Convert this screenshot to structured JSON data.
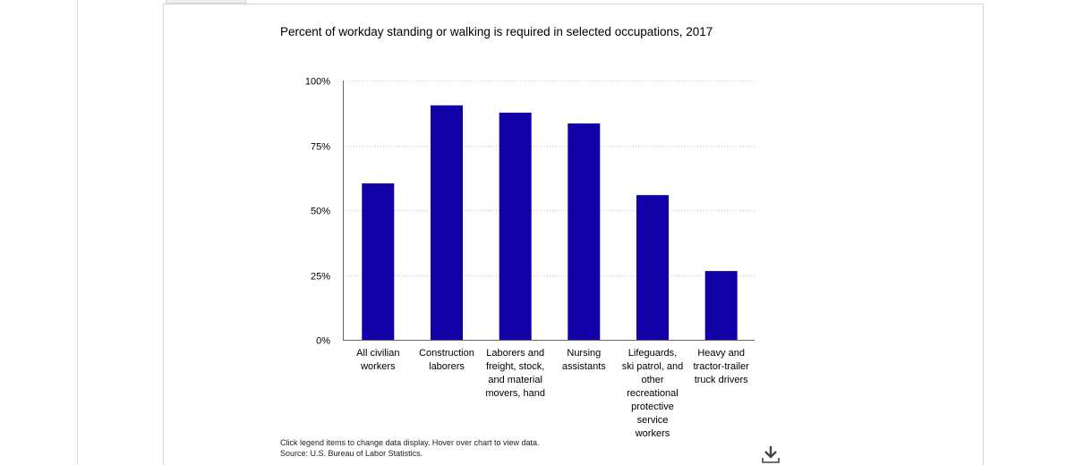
{
  "chart_data": {
    "type": "bar",
    "title": "Percent of workday standing or walking is required in selected occupations, 2017",
    "categories": [
      [
        "All civilian",
        "workers"
      ],
      [
        "Construction",
        "laborers"
      ],
      [
        "Laborers and",
        "freight, stock,",
        "and material",
        "movers, hand"
      ],
      [
        "Nursing",
        "assistants"
      ],
      [
        "Lifeguards,",
        "ski patrol, and",
        "other",
        "recreational",
        "protective",
        "service",
        "workers"
      ],
      [
        "Heavy and",
        "tractor-trailer",
        "truck drivers"
      ]
    ],
    "values": [
      60.3,
      90.4,
      87.6,
      83.4,
      55.8,
      26.5
    ],
    "ylim": [
      0,
      100
    ],
    "yticks": [
      "0%",
      "25%",
      "50%",
      "75%",
      "100%"
    ],
    "ytick_values": [
      0,
      25,
      50,
      75,
      100
    ],
    "grid": true,
    "bar_color": "#1100a6",
    "xlabel": "",
    "ylabel": ""
  },
  "footer": {
    "hint": "Click legend items to change data display. Hover over chart to view data.",
    "source": "Source: U.S. Bureau of Labor Statistics."
  },
  "icons": {
    "download": "download-icon"
  }
}
